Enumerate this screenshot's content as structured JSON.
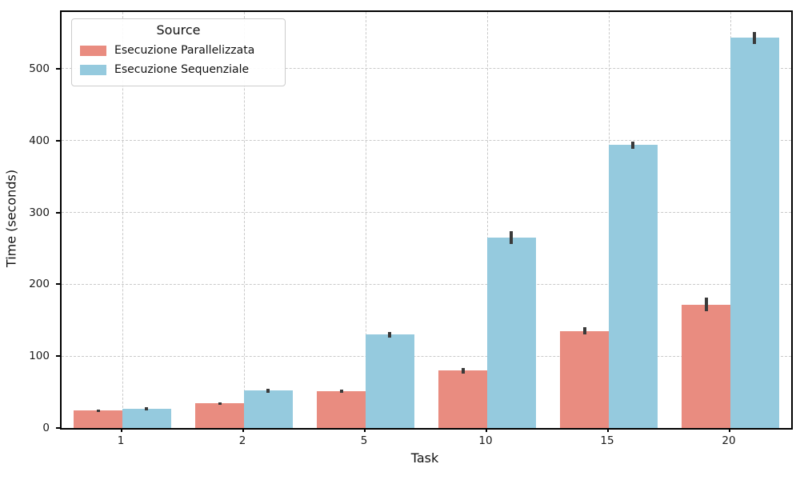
{
  "chart_data": {
    "type": "bar",
    "title": "",
    "xlabel": "Task",
    "ylabel": "Time (seconds)",
    "categories": [
      "1",
      "2",
      "5",
      "10",
      "15",
      "20"
    ],
    "series": [
      {
        "name": "Esecuzione Parallelizzata",
        "color": "#E98C80",
        "values": [
          24,
          34,
          51,
          80,
          135,
          172
        ],
        "errors": [
          1.5,
          2,
          2.5,
          4,
          5,
          10
        ]
      },
      {
        "name": "Esecuzione Sequenziale",
        "color": "#95CADE",
        "values": [
          27,
          52,
          130,
          265,
          394,
          543
        ],
        "errors": [
          2,
          3,
          4,
          9,
          5,
          8
        ]
      }
    ],
    "legend": {
      "title": "Source",
      "position": "upper left"
    },
    "yticks": [
      0,
      100,
      200,
      300,
      400,
      500
    ],
    "ylim": [
      0,
      579
    ],
    "grid": "dashed",
    "colors": {
      "grid": "#c9c9c9",
      "spine": "#000000",
      "errorbar": "#3a3a3a",
      "background": "#ffffff"
    }
  }
}
